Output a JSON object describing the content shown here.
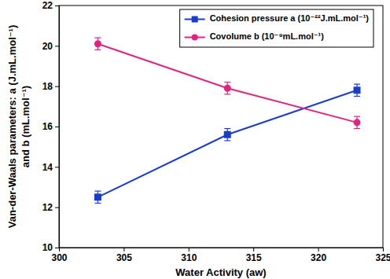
{
  "chart_data": {
    "type": "line",
    "xlabel": "Water Activity (aw)",
    "ylabel": [
      "Van-der-Waals parameters: a (J.mL.mol⁻¹)",
      "and b (mL.mol⁻¹)"
    ],
    "x": [
      303,
      313,
      323
    ],
    "xlim": [
      300,
      325
    ],
    "xticks": [
      300,
      305,
      310,
      315,
      320,
      325
    ],
    "ylim": [
      10,
      22
    ],
    "yticks": [
      10,
      12,
      14,
      16,
      18,
      20,
      22
    ],
    "legend": "upper right",
    "series": [
      {
        "name": "Cohesion pressure a (10⁻²²J.mL.mol⁻¹)",
        "color": "#1a3ccc",
        "marker": "square",
        "values": [
          12.5,
          15.6,
          17.8
        ],
        "errors": [
          0.3,
          0.3,
          0.3
        ]
      },
      {
        "name": "Covolume b (10⁻⁹mL.mol⁻¹)",
        "color": "#e0237f",
        "marker": "circle",
        "values": [
          20.1,
          17.9,
          16.2
        ],
        "errors": [
          0.3,
          0.3,
          0.3
        ]
      }
    ]
  }
}
